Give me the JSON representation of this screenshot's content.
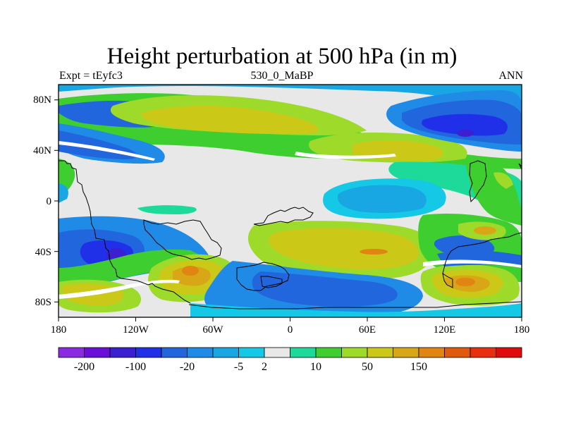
{
  "figure": {
    "title": "Height perturbation at 500 hPa (in m)",
    "left_label": "Expt = tEyfc3",
    "center_label": "530_0_MaBP",
    "right_label": "ANN"
  },
  "axes": {
    "lon_ticks": [
      "180",
      "120W",
      "60W",
      "0",
      "60E",
      "120E",
      "180"
    ],
    "lat_ticks": [
      "80N",
      "40N",
      "0",
      "40S",
      "80S"
    ]
  },
  "colorbar": {
    "colors": [
      "#8a2be2",
      "#6a0fd8",
      "#3b1fd0",
      "#2030e8",
      "#2266dd",
      "#1f8be6",
      "#19a7e4",
      "#14c8e6",
      "#e8e8e8",
      "#1dd99a",
      "#3fce2f",
      "#9dda2a",
      "#cbc817",
      "#d9a617",
      "#e08512",
      "#e05a0e",
      "#e8300e",
      "#e00c0c"
    ],
    "labels": [
      "-200",
      "-100",
      "-20",
      "-5",
      "2",
      "10",
      "50",
      "150"
    ],
    "label_after_box": [
      1,
      3,
      5,
      7,
      8,
      10,
      12,
      14
    ]
  },
  "chart_data": {
    "type": "heatmap",
    "title": "Height perturbation at 500 hPa (in m)",
    "xlabel": "",
    "ylabel": "",
    "x_range": [
      -180,
      180
    ],
    "y_range": [
      -90,
      90
    ],
    "contour_levels": [
      -200,
      -100,
      -20,
      -5,
      2,
      10,
      50,
      150
    ]
  }
}
